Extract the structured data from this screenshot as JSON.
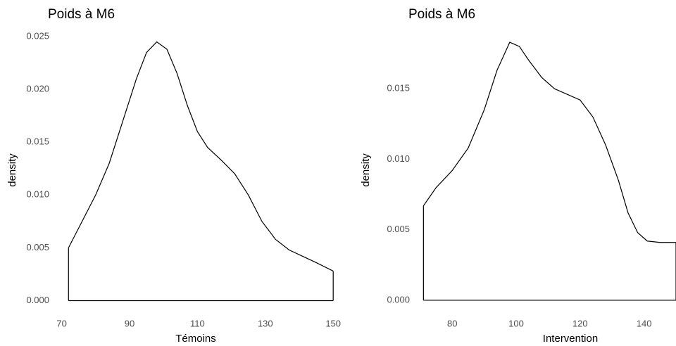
{
  "chart_data": [
    {
      "type": "area",
      "title": "Poids à M6",
      "x_label": "Témoins",
      "y_label": "density",
      "color": "#000000",
      "x": [
        72,
        76,
        80,
        84,
        88,
        92,
        95,
        98,
        101,
        104,
        107,
        110,
        113,
        117,
        121,
        125,
        129,
        133,
        137,
        141,
        145,
        150
      ],
      "values": [
        0.005,
        0.0075,
        0.01,
        0.013,
        0.017,
        0.021,
        0.0235,
        0.0245,
        0.0238,
        0.0215,
        0.0185,
        0.016,
        0.0145,
        0.0133,
        0.012,
        0.01,
        0.0075,
        0.0058,
        0.0048,
        0.0042,
        0.0036,
        0.0028
      ],
      "xlim": [
        68,
        151
      ],
      "ylim": [
        -0.0011,
        0.0258
      ],
      "xticks": [
        70,
        90,
        110,
        130,
        150
      ],
      "yticks": [
        {
          "value": 0,
          "label": "0.000"
        },
        {
          "value": 0.005,
          "label": "0.005"
        },
        {
          "value": 0.01,
          "label": "0.010"
        },
        {
          "value": 0.015,
          "label": "0.015"
        },
        {
          "value": 0.02,
          "label": "0.020"
        },
        {
          "value": 0.025,
          "label": "0.025"
        }
      ]
    },
    {
      "type": "area",
      "title": "Poids à M6",
      "x_label": "Intervention",
      "y_label": "density",
      "color": "#000000",
      "x": [
        71,
        75,
        80,
        85,
        90,
        94,
        98,
        101,
        104,
        108,
        112,
        116,
        120,
        124,
        128,
        132,
        135,
        138,
        141,
        145,
        150
      ],
      "values": [
        0.0067,
        0.008,
        0.0092,
        0.0108,
        0.0135,
        0.0163,
        0.0183,
        0.018,
        0.017,
        0.0158,
        0.015,
        0.0146,
        0.0142,
        0.013,
        0.011,
        0.0085,
        0.0062,
        0.0048,
        0.0042,
        0.0041,
        0.0041
      ],
      "xlim": [
        68.5,
        150
      ],
      "ylim": [
        -0.00085,
        0.0193
      ],
      "xticks": [
        80,
        100,
        120,
        140
      ],
      "yticks": [
        {
          "value": 0,
          "label": "0.000"
        },
        {
          "value": 0.005,
          "label": "0.005"
        },
        {
          "value": 0.01,
          "label": "0.010"
        },
        {
          "value": 0.015,
          "label": "0.015"
        }
      ]
    }
  ]
}
